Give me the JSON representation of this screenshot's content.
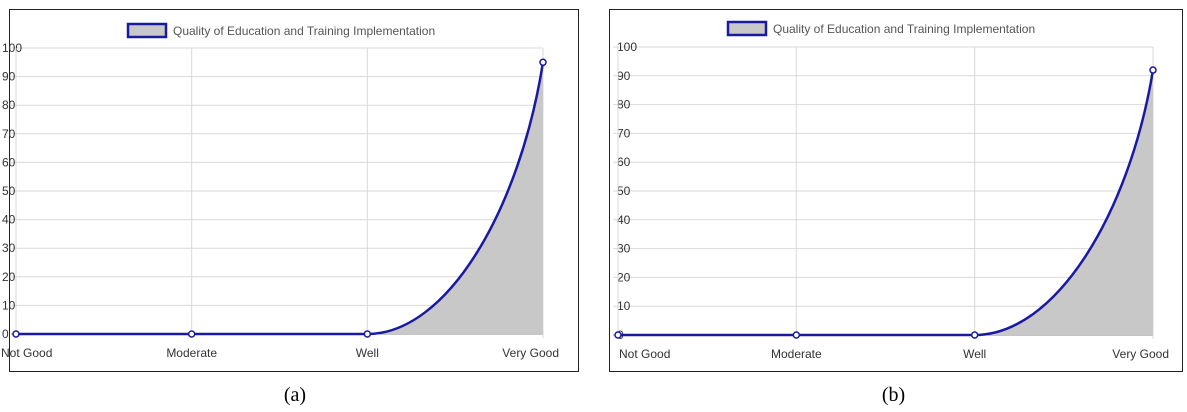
{
  "chart_data": [
    {
      "type": "area",
      "caption": "(a)",
      "categories": [
        "Not Good",
        "Moderate",
        "Well",
        "Very Good"
      ],
      "series": [
        {
          "name": "Quality of Education and Training Implementation",
          "values": [
            0,
            0,
            0,
            95
          ]
        }
      ],
      "ylim": [
        0,
        100
      ],
      "yticks": [
        "0",
        "10",
        "20",
        "30",
        "40",
        "50",
        "60",
        "70",
        "80",
        "90",
        "100"
      ],
      "grid": true,
      "legend": "top-center",
      "line_color": "#1a1aa0",
      "fill_color": "#c8c8c8"
    },
    {
      "type": "area",
      "caption": "(b)",
      "categories": [
        "Not Good",
        "Moderate",
        "Well",
        "Very Good"
      ],
      "series": [
        {
          "name": "Quality of Education and Training Implementation",
          "values": [
            0,
            0,
            0,
            92
          ]
        }
      ],
      "ylim": [
        0,
        100
      ],
      "yticks": [
        "0",
        "10",
        "20",
        "30",
        "40",
        "50",
        "60",
        "70",
        "80",
        "90",
        "100"
      ],
      "grid": true,
      "legend": "top-center",
      "line_color": "#1a1aa0",
      "fill_color": "#c8c8c8"
    }
  ]
}
